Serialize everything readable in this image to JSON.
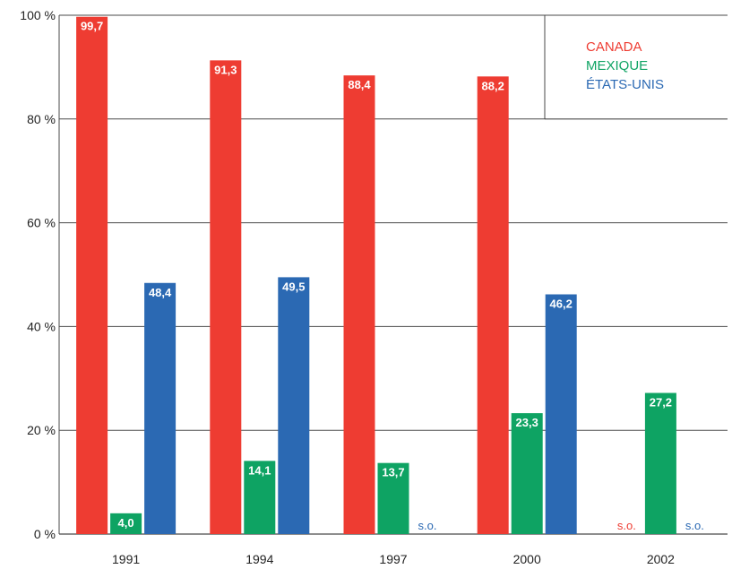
{
  "chart_data": {
    "type": "bar",
    "categories": [
      "1991",
      "1994",
      "1997",
      "2000",
      "2002"
    ],
    "ylim": [
      0,
      100
    ],
    "yticks": [
      "0 %",
      "20 %",
      "40 %",
      "60 %",
      "80 %",
      "100 %"
    ],
    "grid": true,
    "legend_position": "top-right",
    "na_label": "s.o.",
    "series": [
      {
        "name": "CANADA",
        "color": "#ee3c32",
        "values": [
          99.7,
          91.3,
          88.4,
          88.2,
          null
        ],
        "labels": [
          "99,7",
          "91,3",
          "88,4",
          "88,2",
          "s.o."
        ]
      },
      {
        "name": "MEXIQUE",
        "color": "#0ea363",
        "values": [
          4.0,
          14.1,
          13.7,
          23.3,
          27.2
        ],
        "labels": [
          "4,0",
          "14,1",
          "13,7",
          "23,3",
          "27,2"
        ]
      },
      {
        "name": "ÉTATS-UNIS",
        "color": "#2b69b3",
        "values": [
          48.4,
          49.5,
          null,
          46.2,
          null
        ],
        "labels": [
          "48,4",
          "49,5",
          "s.o.",
          "46,2",
          "s.o."
        ]
      }
    ]
  }
}
